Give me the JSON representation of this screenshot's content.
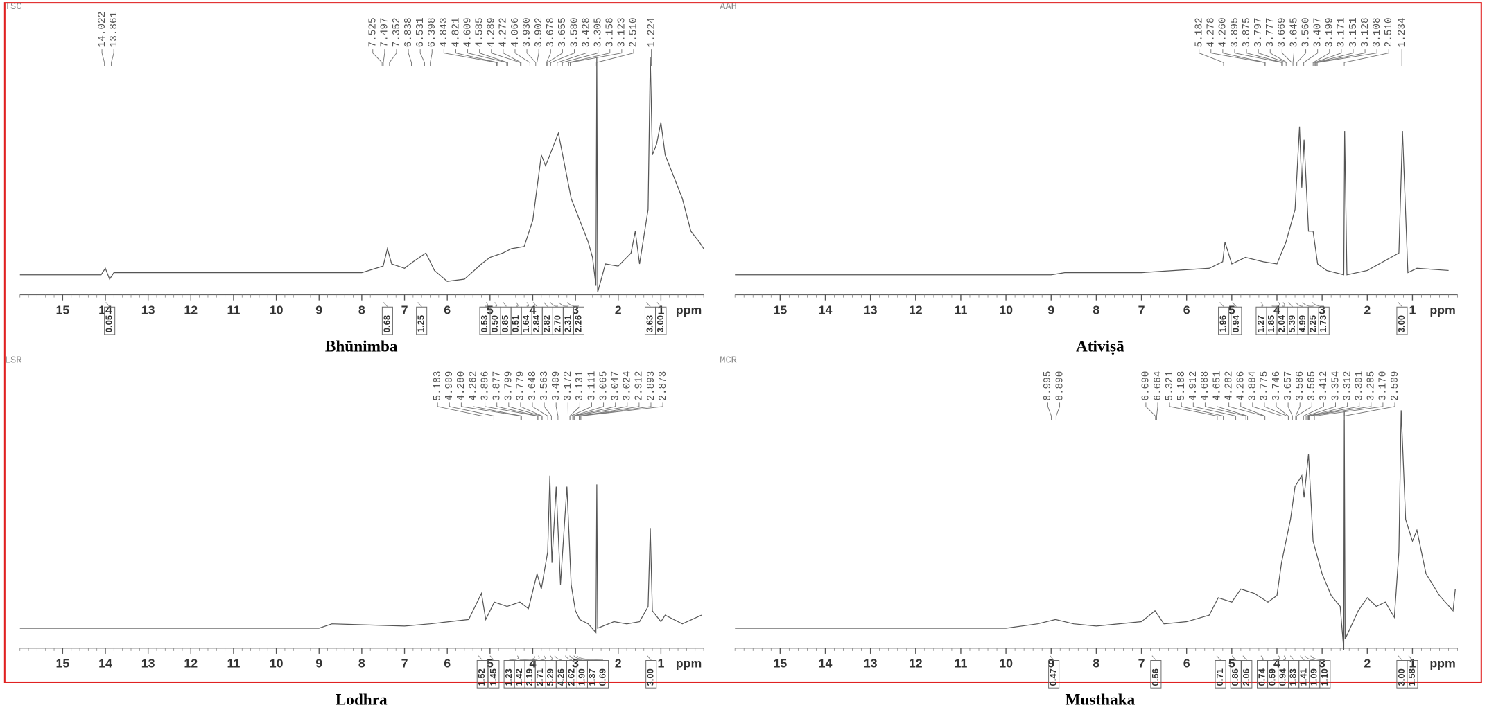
{
  "chart_data": [
    {
      "type": "line",
      "code": "TSC",
      "title": "Bhūnimba",
      "xlabel": "ppm",
      "color": "#555555",
      "xlim": [
        16,
        0
      ],
      "xticks": [
        15,
        14,
        13,
        12,
        11,
        10,
        9,
        8,
        7,
        6,
        5,
        4,
        3,
        2,
        1
      ],
      "ylim": [
        0,
        100
      ],
      "x": [
        16,
        14.1,
        14.0,
        13.9,
        13.8,
        12,
        8,
        7.5,
        7.4,
        7.3,
        7.0,
        6.8,
        6.5,
        6.3,
        6.0,
        5.6,
        5.2,
        5.0,
        4.7,
        4.5,
        4.2,
        4.0,
        3.9,
        3.8,
        3.7,
        3.5,
        3.4,
        3.3,
        3.1,
        2.9,
        2.7,
        2.6,
        2.52,
        2.5,
        2.48,
        2.3,
        2.0,
        1.7,
        1.6,
        1.5,
        1.3,
        1.25,
        1.2,
        1.1,
        1.0,
        0.9,
        0.7,
        0.5,
        0.3,
        0.1,
        0
      ],
      "values": [
        0,
        0,
        3,
        -2,
        1,
        1,
        1,
        4,
        12,
        5,
        3,
        6,
        10,
        2,
        -3,
        -2,
        5,
        8,
        10,
        12,
        13,
        25,
        40,
        55,
        50,
        60,
        65,
        55,
        35,
        25,
        15,
        8,
        -5,
        100,
        -8,
        5,
        4,
        10,
        20,
        5,
        30,
        100,
        55,
        60,
        70,
        55,
        45,
        35,
        20,
        15,
        12
      ],
      "peak_labels": [
        "14.022",
        "13.861",
        "7.525",
        "7.497",
        "7.352",
        "6.838",
        "6.531",
        "6.398",
        "4.843",
        "4.821",
        "4.609",
        "4.585",
        "4.289",
        "4.272",
        "4.066",
        "3.930",
        "3.902",
        "3.678",
        "3.655",
        "3.580",
        "3.428",
        "3.305",
        "3.158",
        "3.123",
        "2.510",
        "1.224"
      ],
      "integrals": [
        {
          "value": 13.9,
          "label": "0.05"
        },
        {
          "value": 7.4,
          "label": "0.68"
        },
        {
          "value": 6.6,
          "label": "1.25"
        },
        {
          "value": 5.0,
          "label": "0.53"
        },
        {
          "value": 4.8,
          "label": "0.50"
        },
        {
          "value": 4.6,
          "label": "0.85"
        },
        {
          "value": 4.3,
          "label": "0.51"
        },
        {
          "value": 4.05,
          "label": "1.64"
        },
        {
          "value": 3.9,
          "label": "2.84"
        },
        {
          "value": 3.65,
          "label": "2.82"
        },
        {
          "value": 3.5,
          "label": "2.70"
        },
        {
          "value": 3.3,
          "label": "2.31"
        },
        {
          "value": 3.1,
          "label": "2.26"
        },
        {
          "value": 1.25,
          "label": "3.63"
        },
        {
          "value": 1.0,
          "label": "3.00"
        }
      ]
    },
    {
      "type": "line",
      "code": "AAH",
      "title": "Ativiṣā",
      "xlabel": "ppm",
      "color": "#555555",
      "xlim": [
        16,
        0
      ],
      "xticks": [
        15,
        14,
        13,
        12,
        11,
        10,
        9,
        8,
        7,
        6,
        5,
        4,
        3,
        2,
        1
      ],
      "ylim": [
        0,
        100
      ],
      "x": [
        16,
        9,
        8.7,
        7,
        5.5,
        5.2,
        5.15,
        5.0,
        4.7,
        4.3,
        4.0,
        3.8,
        3.6,
        3.5,
        3.45,
        3.4,
        3.3,
        3.2,
        3.1,
        2.9,
        2.52,
        2.5,
        2.45,
        2.0,
        1.3,
        1.22,
        1.1,
        0.9,
        0.2
      ],
      "values": [
        0,
        0,
        1,
        1,
        3,
        6,
        15,
        5,
        8,
        6,
        5,
        15,
        30,
        68,
        40,
        62,
        20,
        20,
        5,
        2,
        0,
        66,
        0,
        2,
        10,
        66,
        1,
        3,
        2
      ],
      "peak_labels": [
        "5.182",
        "4.278",
        "4.260",
        "3.895",
        "3.875",
        "3.797",
        "3.777",
        "3.669",
        "3.645",
        "3.560",
        "3.407",
        "3.199",
        "3.171",
        "3.151",
        "3.128",
        "3.108",
        "2.510",
        "1.234"
      ],
      "integrals": [
        {
          "value": 5.18,
          "label": "1.96"
        },
        {
          "value": 4.9,
          "label": "0.94"
        },
        {
          "value": 4.27,
          "label": "1.27"
        },
        {
          "value": 3.88,
          "label": "1.85"
        },
        {
          "value": 3.78,
          "label": "2.04"
        },
        {
          "value": 3.66,
          "label": "5.39"
        },
        {
          "value": 3.5,
          "label": "4.99"
        },
        {
          "value": 3.35,
          "label": "2.25"
        },
        {
          "value": 3.13,
          "label": "1.73"
        },
        {
          "value": 1.23,
          "label": "3.00"
        }
      ]
    },
    {
      "type": "line",
      "code": "LSR",
      "title": "Lodhra",
      "xlabel": "ppm",
      "color": "#555555",
      "xlim": [
        16,
        0
      ],
      "xticks": [
        15,
        14,
        13,
        12,
        11,
        10,
        9,
        8,
        7,
        6,
        5,
        4,
        3,
        2,
        1
      ],
      "ylim": [
        0,
        100
      ],
      "x": [
        16,
        9,
        8.7,
        7,
        6.4,
        5.5,
        5.2,
        5.1,
        4.9,
        4.6,
        4.3,
        4.1,
        3.9,
        3.8,
        3.65,
        3.6,
        3.55,
        3.45,
        3.35,
        3.2,
        3.1,
        3.0,
        2.9,
        2.7,
        2.52,
        2.5,
        2.48,
        2.1,
        1.8,
        1.5,
        1.3,
        1.25,
        1.2,
        1.0,
        0.9,
        0.5,
        0.05
      ],
      "values": [
        0,
        0,
        2,
        1,
        2,
        4,
        16,
        4,
        12,
        10,
        12,
        9,
        25,
        18,
        35,
        70,
        30,
        65,
        20,
        65,
        20,
        8,
        4,
        2,
        -2,
        66,
        0,
        3,
        2,
        3,
        10,
        46,
        8,
        3,
        6,
        2,
        6
      ],
      "peak_labels": [
        "5.183",
        "4.909",
        "4.280",
        "4.262",
        "3.896",
        "3.877",
        "3.799",
        "3.779",
        "3.648",
        "3.563",
        "3.409",
        "3.172",
        "3.131",
        "3.111",
        "3.065",
        "3.047",
        "3.024",
        "2.912",
        "2.893",
        "2.873"
      ],
      "integrals": [
        {
          "value": 5.18,
          "label": "1.52"
        },
        {
          "value": 4.91,
          "label": "1.45"
        },
        {
          "value": 4.27,
          "label": "1.23"
        },
        {
          "value": 3.88,
          "label": "1.42"
        },
        {
          "value": 3.78,
          "label": "2.19"
        },
        {
          "value": 3.65,
          "label": "2.71"
        },
        {
          "value": 3.5,
          "label": "5.29"
        },
        {
          "value": 3.4,
          "label": "4.26"
        },
        {
          "value": 3.15,
          "label": "2.62"
        },
        {
          "value": 3.05,
          "label": "1.90"
        },
        {
          "value": 2.95,
          "label": "1.37"
        },
        {
          "value": 2.88,
          "label": "0.69"
        },
        {
          "value": 1.23,
          "label": "3.00"
        }
      ]
    },
    {
      "type": "line",
      "code": "MCR",
      "title": "Musthaka",
      "xlabel": "ppm",
      "color": "#555555",
      "xlim": [
        16,
        0
      ],
      "xticks": [
        15,
        14,
        13,
        12,
        11,
        10,
        9,
        8,
        7,
        6,
        5,
        4,
        3,
        2,
        1
      ],
      "ylim": [
        0,
        100
      ],
      "x": [
        16,
        10,
        9.3,
        8.9,
        8.5,
        8,
        7,
        6.7,
        6.5,
        6,
        5.5,
        5.3,
        5.0,
        4.8,
        4.5,
        4.2,
        4.0,
        3.9,
        3.7,
        3.6,
        3.45,
        3.4,
        3.3,
        3.2,
        3.0,
        2.8,
        2.6,
        2.52,
        2.51,
        2.49,
        2.2,
        2.0,
        1.8,
        1.6,
        1.4,
        1.3,
        1.25,
        1.15,
        1.0,
        0.9,
        0.7,
        0.4,
        0.1,
        0.05
      ],
      "values": [
        0,
        0,
        2,
        4,
        2,
        1,
        3,
        8,
        2,
        3,
        6,
        14,
        12,
        18,
        16,
        12,
        15,
        30,
        50,
        65,
        70,
        60,
        80,
        40,
        25,
        15,
        10,
        -10,
        100,
        -5,
        8,
        14,
        10,
        12,
        5,
        35,
        100,
        50,
        40,
        45,
        25,
        15,
        8,
        18
      ],
      "peak_labels": [
        "8.995",
        "8.890",
        "6.690",
        "6.664",
        "5.321",
        "5.188",
        "4.912",
        "4.688",
        "4.651",
        "4.282",
        "4.266",
        "3.884",
        "3.775",
        "3.746",
        "3.657",
        "3.586",
        "3.565",
        "3.412",
        "3.354",
        "3.312",
        "3.301",
        "3.285",
        "3.170",
        "2.509"
      ],
      "integrals": [
        {
          "value": 8.94,
          "label": "0.47"
        },
        {
          "value": 6.68,
          "label": "0.56"
        },
        {
          "value": 5.25,
          "label": "0.71"
        },
        {
          "value": 4.91,
          "label": "0.86"
        },
        {
          "value": 4.67,
          "label": "2.06"
        },
        {
          "value": 4.27,
          "label": "0.74"
        },
        {
          "value": 3.88,
          "label": "0.59"
        },
        {
          "value": 3.76,
          "label": "0.94"
        },
        {
          "value": 3.62,
          "label": "1.83"
        },
        {
          "value": 3.4,
          "label": "1.41"
        },
        {
          "value": 3.3,
          "label": "1.09"
        },
        {
          "value": 3.17,
          "label": "1.10"
        },
        {
          "value": 1.23,
          "label": "3.00"
        },
        {
          "value": 1.0,
          "label": "1.58"
        }
      ]
    }
  ]
}
